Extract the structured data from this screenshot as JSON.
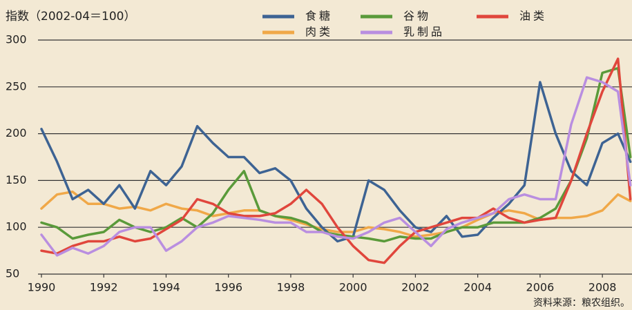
{
  "chart_data": {
    "type": "line",
    "title": "指数（2002-04＝100）",
    "source": "资料来源：粮农组织。",
    "x": [
      1990,
      1990.5,
      1991,
      1991.5,
      1992,
      1992.5,
      1993,
      1993.5,
      1994,
      1994.5,
      1995,
      1995.5,
      1996,
      1996.5,
      1997,
      1997.5,
      1998,
      1998.5,
      1999,
      1999.5,
      2000,
      2000.5,
      2001,
      2001.5,
      2002,
      2002.5,
      2003,
      2003.5,
      2004,
      2004.5,
      2005,
      2005.5,
      2006,
      2006.5,
      2007,
      2007.5,
      2008,
      2008.5,
      2008.9
    ],
    "xlim": [
      1990,
      2008.95
    ],
    "xticks": [
      1990,
      1992,
      1994,
      1996,
      1998,
      2000,
      2002,
      2004,
      2006,
      2008
    ],
    "ylim": [
      50,
      300
    ],
    "yticks": [
      50,
      100,
      150,
      200,
      250,
      300
    ],
    "grid": true,
    "legend": "top",
    "series": [
      {
        "name": "食糖",
        "color": "#3d6393",
        "values": [
          205,
          170,
          130,
          140,
          125,
          145,
          120,
          160,
          145,
          165,
          208,
          190,
          175,
          175,
          158,
          163,
          150,
          120,
          100,
          85,
          90,
          150,
          140,
          118,
          100,
          95,
          112,
          90,
          92,
          110,
          125,
          145,
          255,
          200,
          160,
          145,
          190,
          200,
          170
        ]
      },
      {
        "name": "肉类",
        "color": "#f0a848",
        "values": [
          120,
          135,
          138,
          125,
          125,
          120,
          122,
          118,
          125,
          120,
          118,
          112,
          115,
          118,
          118,
          112,
          108,
          103,
          98,
          95,
          95,
          100,
          98,
          95,
          90,
          92,
          95,
          100,
          108,
          115,
          118,
          115,
          108,
          110,
          110,
          112,
          118,
          135,
          128
        ]
      },
      {
        "name": "谷物",
        "color": "#5a9a3a",
        "values": [
          105,
          100,
          88,
          92,
          95,
          108,
          100,
          95,
          100,
          110,
          100,
          115,
          140,
          160,
          118,
          112,
          110,
          105,
          95,
          92,
          90,
          88,
          85,
          90,
          88,
          88,
          95,
          100,
          100,
          105,
          105,
          105,
          110,
          120,
          150,
          195,
          265,
          270,
          175
        ]
      },
      {
        "name": "乳制品",
        "color": "#b98ee0",
        "values": [
          92,
          70,
          78,
          72,
          80,
          95,
          100,
          100,
          75,
          85,
          100,
          105,
          112,
          110,
          108,
          105,
          105,
          95,
          95,
          90,
          88,
          95,
          105,
          110,
          95,
          80,
          98,
          105,
          110,
          115,
          130,
          135,
          130,
          130,
          210,
          260,
          255,
          245,
          145
        ]
      },
      {
        "name": "油类",
        "color": "#e0463c",
        "values": [
          75,
          72,
          80,
          85,
          85,
          90,
          85,
          88,
          98,
          108,
          130,
          125,
          115,
          112,
          112,
          115,
          125,
          140,
          125,
          100,
          80,
          65,
          62,
          80,
          95,
          100,
          105,
          110,
          110,
          120,
          110,
          105,
          108,
          110,
          150,
          200,
          245,
          280,
          130
        ]
      }
    ]
  }
}
